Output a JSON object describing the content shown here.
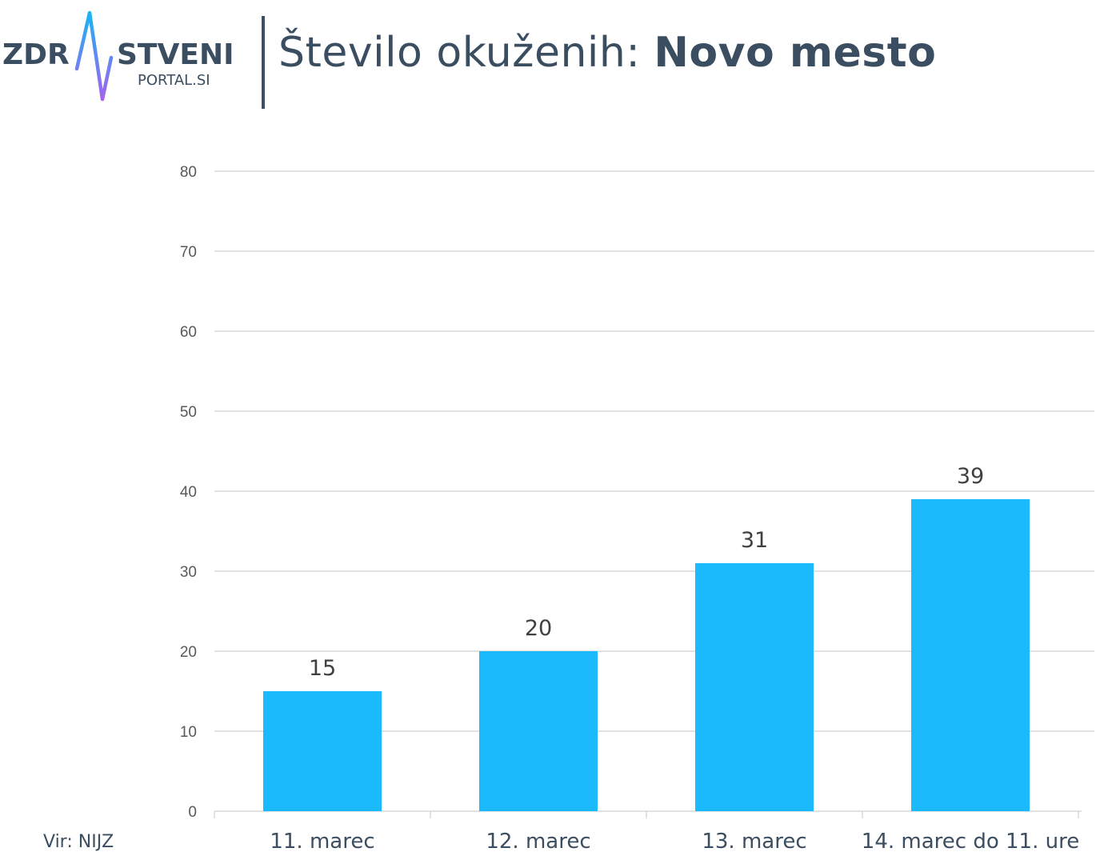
{
  "brand": {
    "logo_left": "ZDR",
    "logo_right": "STVENI",
    "logo_sub": "PORTAL.SI",
    "colors": {
      "text": "#3b4d60",
      "pulse_top": "#1ab4f4",
      "pulse_bottom": "#a463ef"
    }
  },
  "header": {
    "title_prefix": "Število okuženih: ",
    "title_place": "Novo mesto"
  },
  "source": "Vir: NIJZ",
  "chart_data": {
    "type": "bar",
    "categories": [
      "11. marec",
      "12. marec",
      "13. marec",
      "14. marec do 11. ure"
    ],
    "values": [
      15,
      20,
      31,
      39
    ],
    "ylim": [
      0,
      80
    ],
    "yticks": [
      0,
      10,
      20,
      30,
      40,
      50,
      60,
      70,
      80
    ],
    "title": "Število okuženih: Novo mesto",
    "xlabel": "",
    "ylabel": "",
    "grid": true,
    "bar_color": "#1abafd",
    "gridline_color": "#d9d9d9",
    "label_color": "#404040"
  }
}
